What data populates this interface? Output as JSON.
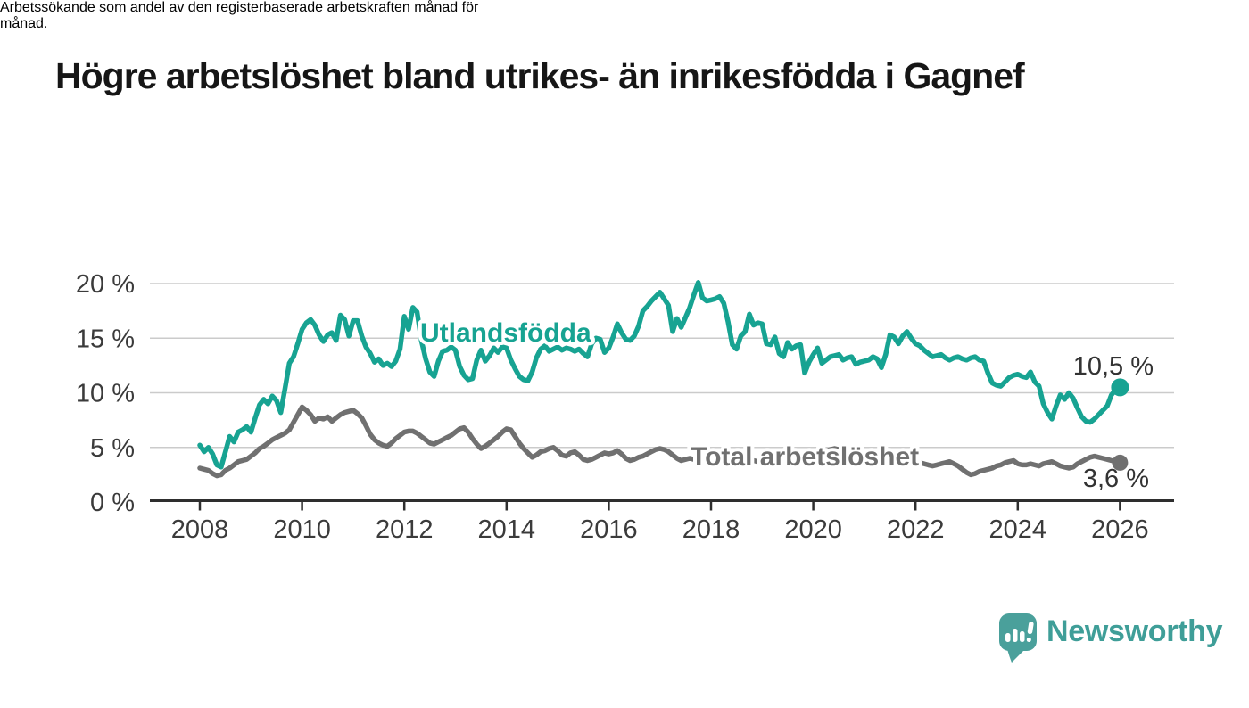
{
  "header": {
    "title": "Högre arbetslöshet bland utrikes- än inrikesfödda i Gagnef",
    "subtitle": "Arbetssökande som andel av den registerbaserade arbetskraften månad för månad.",
    "subtitle_lines": {
      "0": "Arbetssökande som andel av den registerbaserade arbetskraften månad för",
      "1": "månad."
    }
  },
  "chart_data": {
    "type": "line",
    "title": "Högre arbetslöshet bland utrikes- än inrikesfödda i Gagnef",
    "subtitle": "Arbetssökande som andel av den registerbaserade arbetskraften månad för månad.",
    "x_axis": {
      "range": [
        2007.0,
        2027.1
      ],
      "ticks": [
        2008,
        2010,
        2012,
        2014,
        2016,
        2018,
        2020,
        2022,
        2024,
        2026
      ],
      "tick_labels": [
        "2008",
        "2010",
        "2012",
        "2014",
        "2016",
        "2018",
        "2020",
        "2022",
        "2024",
        "2026"
      ]
    },
    "y_axis": {
      "range": [
        0,
        20.6
      ],
      "ticks": [
        0,
        5,
        10,
        15,
        20
      ],
      "tick_labels": [
        "0 %",
        "5 %",
        "10 %",
        "15 %",
        "20 %"
      ],
      "grid": true
    },
    "x_start_year": 2008.0,
    "x_step_months": 1,
    "colors": {
      "grid": "#cbcbcb",
      "axis": "#2e2e2e",
      "tick_text": "#3b3b3b"
    },
    "series": [
      {
        "name": "Utlandsfödda",
        "label": "Utlandsfödda",
        "color": "#17a392",
        "end_label": "10,5 %",
        "end_value": 10.5,
        "values": [
          5.2,
          4.6,
          5.0,
          4.4,
          3.4,
          3.2,
          4.6,
          6.0,
          5.5,
          6.4,
          6.6,
          6.9,
          6.4,
          7.7,
          8.9,
          9.4,
          9.0,
          9.7,
          9.3,
          8.2,
          10.4,
          12.7,
          13.3,
          14.5,
          15.8,
          16.4,
          16.7,
          16.2,
          15.3,
          14.7,
          15.3,
          15.5,
          14.8,
          17.1,
          16.7,
          15.2,
          16.6,
          16.6,
          15.2,
          14.2,
          13.6,
          12.8,
          13.1,
          12.5,
          12.7,
          12.4,
          12.9,
          14.0,
          17.0,
          15.8,
          17.8,
          17.4,
          14.8,
          13.1,
          11.9,
          11.5,
          12.9,
          13.8,
          13.9,
          14.2,
          13.9,
          12.4,
          11.6,
          11.2,
          11.3,
          13.0,
          13.9,
          12.9,
          13.4,
          14.1,
          13.7,
          14.2,
          14.1,
          13.0,
          12.2,
          11.5,
          11.2,
          11.1,
          11.9,
          13.2,
          14.0,
          14.3,
          13.8,
          14.0,
          14.2,
          13.9,
          14.1,
          14.0,
          13.8,
          14.0,
          13.6,
          13.3,
          14.5,
          15.0,
          14.9,
          13.7,
          14.1,
          15.1,
          16.3,
          15.5,
          14.9,
          14.8,
          15.2,
          16.1,
          17.5,
          17.9,
          18.4,
          18.8,
          19.2,
          18.6,
          18.0,
          15.6,
          16.8,
          16.0,
          16.9,
          17.8,
          19.0,
          20.1,
          18.7,
          18.4,
          18.5,
          18.6,
          18.8,
          18.2,
          16.5,
          14.4,
          14.0,
          15.2,
          15.6,
          17.2,
          16.2,
          16.4,
          16.3,
          14.5,
          14.4,
          15.1,
          13.6,
          13.3,
          14.6,
          14.0,
          14.3,
          14.4,
          11.8,
          12.8,
          13.5,
          14.1,
          12.7,
          13.0,
          13.3,
          13.4,
          13.5,
          13.0,
          13.2,
          13.3,
          12.6,
          12.8,
          12.9,
          13.0,
          13.3,
          13.1,
          12.3,
          13.5,
          15.3,
          15.1,
          14.5,
          15.2,
          15.6,
          15.0,
          14.5,
          14.3,
          13.9,
          13.6,
          13.3,
          13.4,
          13.5,
          13.2,
          13.0,
          13.2,
          13.3,
          13.1,
          13.0,
          13.2,
          13.3,
          13.0,
          12.9,
          11.8,
          10.9,
          10.7,
          10.6,
          11.0,
          11.4,
          11.6,
          11.7,
          11.5,
          11.4,
          11.9,
          11.0,
          10.6,
          9.0,
          8.2,
          7.6,
          8.8,
          9.8,
          9.4,
          10.0,
          9.5,
          8.6,
          7.8,
          7.4,
          7.3,
          7.6,
          8.0,
          8.4,
          8.8,
          9.8,
          10.3,
          10.5
        ]
      },
      {
        "name": "Total arbetslöshet",
        "label": "Total arbetslöshet",
        "color": "#707070",
        "end_label": "3,6 %",
        "end_value": 3.6,
        "values": [
          3.1,
          3.0,
          2.9,
          2.6,
          2.4,
          2.5,
          2.9,
          3.1,
          3.4,
          3.7,
          3.8,
          3.9,
          4.2,
          4.5,
          4.9,
          5.1,
          5.4,
          5.7,
          5.9,
          6.1,
          6.3,
          6.6,
          7.3,
          8.0,
          8.7,
          8.4,
          8.0,
          7.4,
          7.7,
          7.6,
          7.8,
          7.4,
          7.7,
          8.0,
          8.2,
          8.3,
          8.4,
          8.1,
          7.7,
          7.0,
          6.2,
          5.7,
          5.4,
          5.2,
          5.1,
          5.4,
          5.8,
          6.1,
          6.4,
          6.5,
          6.5,
          6.3,
          6.0,
          5.7,
          5.4,
          5.3,
          5.5,
          5.7,
          5.9,
          6.1,
          6.4,
          6.7,
          6.8,
          6.4,
          5.8,
          5.3,
          4.9,
          5.1,
          5.4,
          5.7,
          6.0,
          6.4,
          6.7,
          6.6,
          6.0,
          5.4,
          4.9,
          4.5,
          4.1,
          4.3,
          4.6,
          4.7,
          4.9,
          5.0,
          4.7,
          4.3,
          4.2,
          4.5,
          4.6,
          4.3,
          3.9,
          3.8,
          3.9,
          4.1,
          4.3,
          4.5,
          4.4,
          4.5,
          4.7,
          4.4,
          4.0,
          3.8,
          3.9,
          4.1,
          4.2,
          4.4,
          4.6,
          4.8,
          4.9,
          4.8,
          4.6,
          4.3,
          4.0,
          3.8,
          3.9,
          4.0,
          3.9,
          3.9,
          3.8,
          3.8,
          3.8,
          3.9,
          3.9,
          3.8,
          3.7,
          3.6,
          3.6,
          3.7,
          3.7,
          3.8,
          3.8,
          3.7,
          3.7,
          3.8,
          3.8,
          3.7,
          3.6,
          3.6,
          3.7,
          3.7,
          3.6,
          3.6,
          3.5,
          3.6,
          3.8,
          3.9,
          4.2,
          4.6,
          4.8,
          4.9,
          4.8,
          4.7,
          4.6,
          4.5,
          4.4,
          4.3,
          4.3,
          4.2,
          4.2,
          4.1,
          4.0,
          3.9,
          3.8,
          3.8,
          3.7,
          3.6,
          3.6,
          3.7,
          3.7,
          3.6,
          3.5,
          3.4,
          3.3,
          3.4,
          3.5,
          3.6,
          3.7,
          3.5,
          3.3,
          3.0,
          2.7,
          2.5,
          2.6,
          2.8,
          2.9,
          3.0,
          3.1,
          3.3,
          3.4,
          3.6,
          3.7,
          3.8,
          3.5,
          3.4,
          3.4,
          3.5,
          3.4,
          3.3,
          3.5,
          3.6,
          3.7,
          3.5,
          3.3,
          3.2,
          3.1,
          3.2,
          3.5,
          3.7,
          3.9,
          4.1,
          4.2,
          4.1,
          4.0,
          3.9,
          3.8,
          3.7,
          3.6
        ]
      }
    ]
  },
  "footer": {
    "brand": "Newsworthy",
    "brand_color": "#3f9e98",
    "brand_icon": "speech-bubble-bar-chart-icon"
  }
}
